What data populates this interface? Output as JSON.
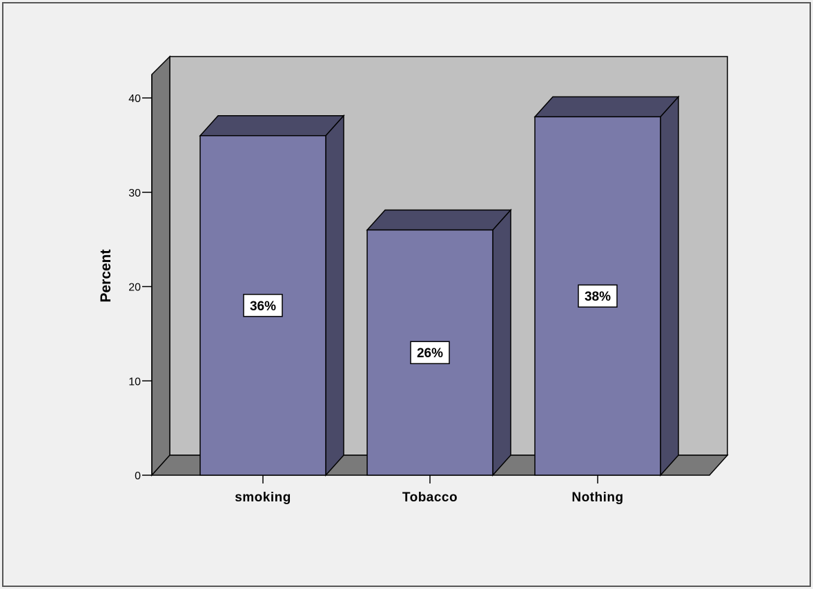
{
  "colors": {
    "background": "#f0f0f0",
    "frame": "#555555",
    "wall_back": "#c0c0c0",
    "wall_side": "#7a7a7a",
    "floor": "#7a7a7a",
    "bar_front": "#7a7aa9",
    "bar_top": "#4a4a68",
    "bar_side": "#4a4a68",
    "label_box": "#ffffff",
    "outline": "#000000"
  },
  "chart_data": {
    "type": "bar",
    "style": "3d",
    "categories": [
      "smoking",
      "Tobacco",
      "Nothing"
    ],
    "values": [
      36,
      26,
      38
    ],
    "data_labels": [
      "36%",
      "26%",
      "38%"
    ],
    "ylabel": "Percent",
    "xlabel": "",
    "ylim": [
      0,
      40
    ],
    "yticks": [
      "0",
      "10",
      "20",
      "30",
      "40"
    ],
    "grid": false,
    "legend": "none"
  }
}
